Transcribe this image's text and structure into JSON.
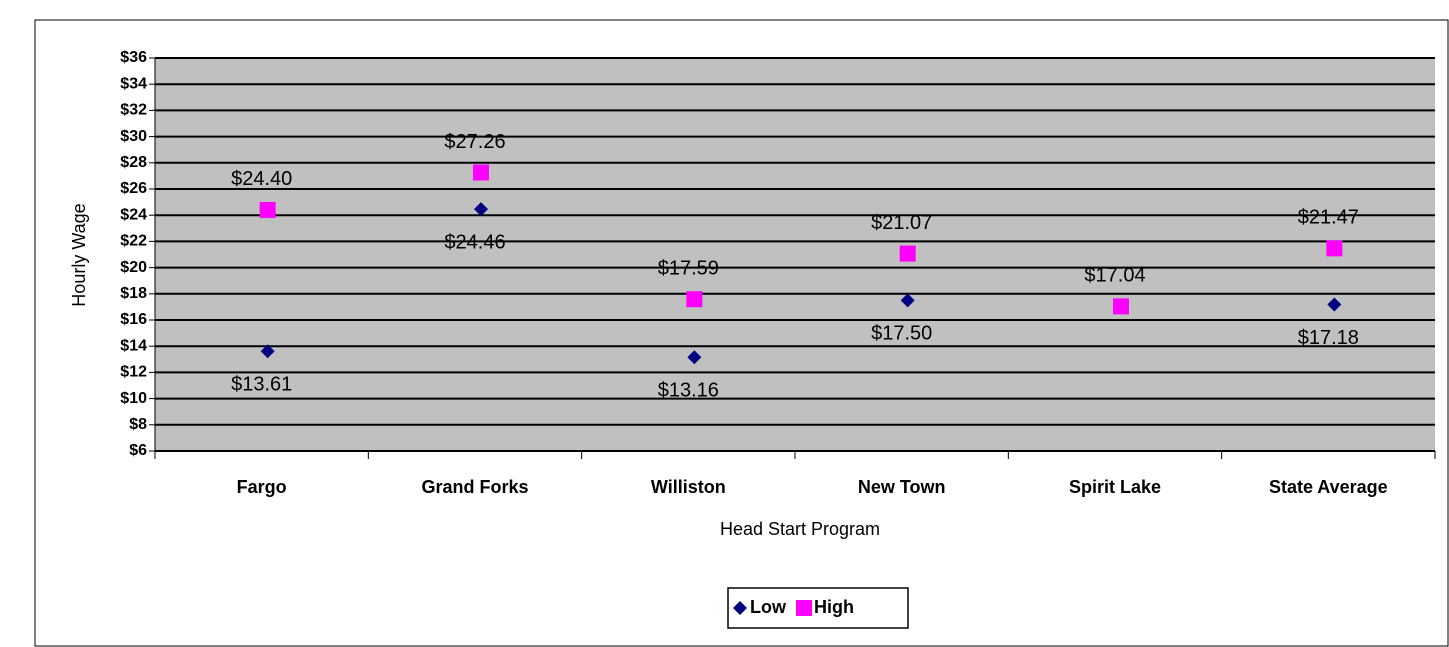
{
  "chart_data": {
    "type": "scatter",
    "x_label": "Head Start Program",
    "y_label": "Hourly Wage",
    "categories": [
      "Fargo",
      "Grand  Forks",
      "Williston",
      "New Town",
      "Spirit Lake",
      "State Average"
    ],
    "series": [
      {
        "name": "Low",
        "color": "#000080",
        "marker": "diamond",
        "values": [
          13.61,
          24.46,
          13.16,
          17.5,
          null,
          17.18
        ],
        "value_labels": [
          "$13.61",
          "$24.46",
          "$13.16",
          "$17.50",
          null,
          "$17.18"
        ]
      },
      {
        "name": "High",
        "color": "#ff00ff",
        "marker": "square",
        "values": [
          24.4,
          27.26,
          17.59,
          21.07,
          17.04,
          21.47
        ],
        "value_labels": [
          "$24.40",
          "$27.26",
          "$17.59",
          "$21.07",
          "$17.04",
          "$21.47"
        ]
      }
    ],
    "ylim": [
      6,
      36
    ],
    "yticks": [
      {
        "value": 6,
        "label": "$6"
      },
      {
        "value": 8,
        "label": "$8"
      },
      {
        "value": 10,
        "label": "$10"
      },
      {
        "value": 12,
        "label": "$12"
      },
      {
        "value": 14,
        "label": "$14"
      },
      {
        "value": 16,
        "label": "$16"
      },
      {
        "value": 18,
        "label": "$18"
      },
      {
        "value": 20,
        "label": "$20"
      },
      {
        "value": 22,
        "label": "$22"
      },
      {
        "value": 24,
        "label": "$24"
      },
      {
        "value": 26,
        "label": "$26"
      },
      {
        "value": 28,
        "label": "$28"
      },
      {
        "value": 30,
        "label": "$30"
      },
      {
        "value": 32,
        "label": "$32"
      },
      {
        "value": 34,
        "label": "$34"
      },
      {
        "value": 36,
        "label": "$36"
      }
    ],
    "grid": true,
    "plot_background": "#c0c0c0",
    "legend": "bottom"
  }
}
